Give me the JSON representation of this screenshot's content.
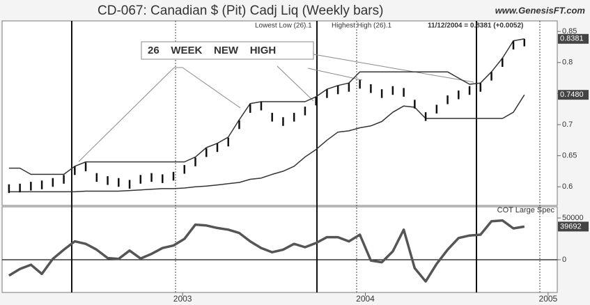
{
  "chart_data": [
    {
      "type": "bars",
      "title": "CD-067:  Canadian $ (Pit) Cadj Liq  (Weekly bars)",
      "source": "www.GenesisFT.com",
      "readout": "11/12/2004 = 0.8381 (+0.0052)",
      "annotation": "26    WEEK    NEW    HIGH",
      "x": [
        2002.05,
        2002.11,
        2002.17,
        2002.23,
        2002.29,
        2002.35,
        2002.41,
        2002.47,
        2002.53,
        2002.59,
        2002.65,
        2002.71,
        2002.77,
        2002.83,
        2002.89,
        2002.95,
        2003.01,
        2003.07,
        2003.13,
        2003.19,
        2003.25,
        2003.31,
        2003.37,
        2003.43,
        2003.49,
        2003.55,
        2003.61,
        2003.67,
        2003.73,
        2003.79,
        2003.85,
        2003.91,
        2003.97,
        2004.03,
        2004.09,
        2004.15,
        2004.21,
        2004.27,
        2004.33,
        2004.39,
        2004.45,
        2004.51,
        2004.57,
        2004.63,
        2004.69,
        2004.75,
        2004.81,
        2004.87
      ],
      "bars": {
        "high": [
          0.604,
          0.605,
          0.608,
          0.61,
          0.614,
          0.619,
          0.633,
          0.639,
          0.622,
          0.617,
          0.614,
          0.611,
          0.619,
          0.622,
          0.62,
          0.624,
          0.635,
          0.647,
          0.662,
          0.67,
          0.679,
          0.707,
          0.733,
          0.737,
          0.719,
          0.712,
          0.719,
          0.729,
          0.745,
          0.757,
          0.763,
          0.767,
          0.772,
          0.765,
          0.757,
          0.762,
          0.759,
          0.74,
          0.72,
          0.732,
          0.747,
          0.755,
          0.762,
          0.767,
          0.785,
          0.807,
          0.835,
          0.838
        ],
        "low": [
          0.59,
          0.591,
          0.594,
          0.596,
          0.6,
          0.605,
          0.619,
          0.625,
          0.608,
          0.603,
          0.6,
          0.597,
          0.605,
          0.608,
          0.606,
          0.61,
          0.621,
          0.633,
          0.648,
          0.656,
          0.665,
          0.693,
          0.719,
          0.723,
          0.705,
          0.698,
          0.705,
          0.715,
          0.731,
          0.743,
          0.749,
          0.753,
          0.758,
          0.751,
          0.743,
          0.748,
          0.745,
          0.726,
          0.706,
          0.718,
          0.733,
          0.741,
          0.748,
          0.753,
          0.771,
          0.793,
          0.821,
          0.826
        ],
        "color": "#111111"
      },
      "series": [
        {
          "name": "Lowest Low (26).1",
          "color": "#333333",
          "values": [
            0.592,
            0.592,
            0.592,
            0.592,
            0.592,
            0.592,
            0.592,
            0.593,
            0.593,
            0.593,
            0.593,
            0.594,
            0.595,
            0.596,
            0.597,
            0.597,
            0.598,
            0.6,
            0.601,
            0.603,
            0.605,
            0.607,
            0.612,
            0.614,
            0.62,
            0.625,
            0.633,
            0.648,
            0.66,
            0.675,
            0.688,
            0.69,
            0.695,
            0.698,
            0.705,
            0.72,
            0.73,
            0.728,
            0.71,
            0.71,
            0.71,
            0.71,
            0.71,
            0.71,
            0.71,
            0.71,
            0.72,
            0.748
          ]
        },
        {
          "name": "Highest High (26).1",
          "color": "#333333",
          "values": [
            0.63,
            0.63,
            0.62,
            0.62,
            0.62,
            0.62,
            0.633,
            0.64,
            0.64,
            0.64,
            0.64,
            0.64,
            0.64,
            0.64,
            0.64,
            0.64,
            0.64,
            0.648,
            0.663,
            0.67,
            0.68,
            0.708,
            0.734,
            0.737,
            0.737,
            0.737,
            0.737,
            0.737,
            0.745,
            0.757,
            0.763,
            0.767,
            0.785,
            0.785,
            0.785,
            0.785,
            0.785,
            0.785,
            0.785,
            0.785,
            0.785,
            0.775,
            0.765,
            0.767,
            0.785,
            0.807,
            0.835,
            0.8381
          ]
        }
      ],
      "xlim": [
        2002.02,
        2005.05
      ],
      "ylim": [
        0.57,
        0.867
      ],
      "yticks": [
        0.6,
        0.65,
        0.7,
        0.75,
        0.8,
        0.85
      ],
      "markers": [
        {
          "value": 0.8381,
          "label": "0.8381"
        },
        {
          "value": 0.748,
          "label": "0.7480"
        }
      ]
    },
    {
      "type": "line",
      "x": [
        2002.05,
        2002.11,
        2002.17,
        2002.23,
        2002.29,
        2002.35,
        2002.41,
        2002.47,
        2002.53,
        2002.59,
        2002.65,
        2002.71,
        2002.77,
        2002.83,
        2002.89,
        2002.95,
        2003.01,
        2003.07,
        2003.13,
        2003.19,
        2003.25,
        2003.31,
        2003.37,
        2003.43,
        2003.49,
        2003.55,
        2003.61,
        2003.67,
        2003.73,
        2003.79,
        2003.85,
        2003.91,
        2003.97,
        2004.03,
        2004.09,
        2004.15,
        2004.21,
        2004.27,
        2004.33,
        2004.39,
        2004.45,
        2004.51,
        2004.57,
        2004.63,
        2004.69,
        2004.75,
        2004.81,
        2004.87
      ],
      "series": [
        {
          "name": "COT Large Spec",
          "color": "#555555",
          "values": [
            -19000,
            -11000,
            -6000,
            -17000,
            1000,
            12000,
            22000,
            19000,
            12000,
            2000,
            1000,
            11000,
            1500,
            7000,
            14000,
            17000,
            25000,
            42000,
            41000,
            38000,
            36000,
            32000,
            22000,
            14000,
            9000,
            12000,
            19000,
            15000,
            20000,
            27000,
            27000,
            22000,
            30000,
            -1000,
            -3000,
            10000,
            36000,
            -10000,
            -26000,
            -5000,
            12000,
            26000,
            29000,
            30000,
            46000,
            47000,
            37500,
            39692
          ]
        }
      ],
      "xlim": [
        2002.02,
        2005.05
      ],
      "xticks": [
        2003,
        2004,
        2005
      ],
      "ylim": [
        -39167,
        63333
      ],
      "yticks": [
        0,
        50000
      ],
      "reference_line": 0,
      "markers": [
        {
          "value": 39692,
          "label": "39692"
        }
      ]
    }
  ]
}
